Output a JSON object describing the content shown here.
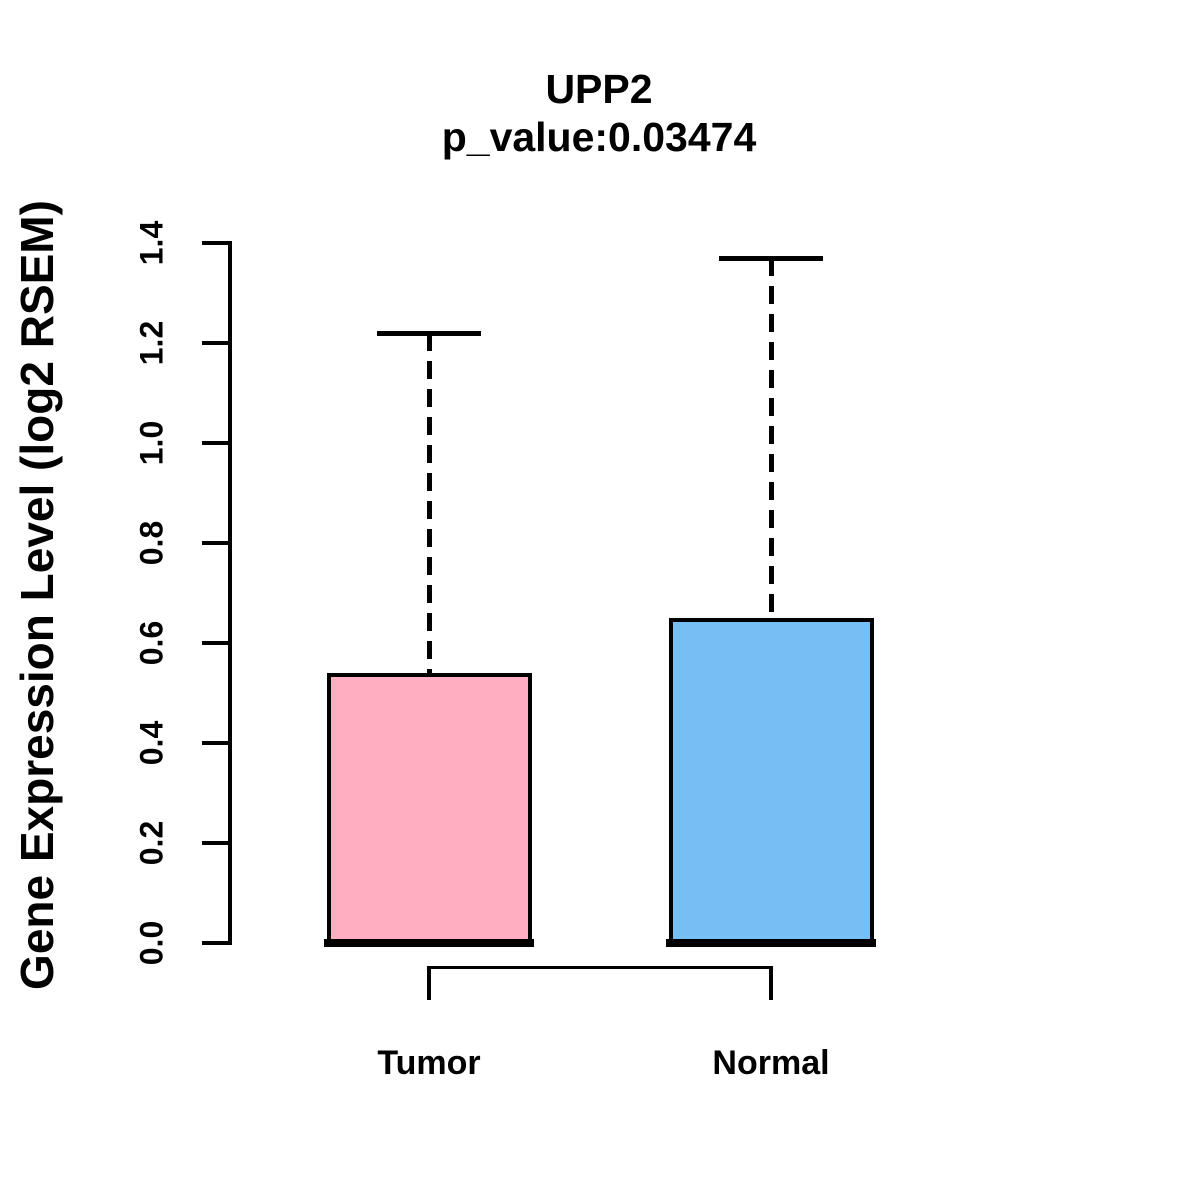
{
  "chart": {
    "title": "UPP2",
    "subtitle": "p_value:0.03474",
    "y_axis_label": "Gene Expression Level (log2 RSEM)"
  },
  "chart_data": {
    "type": "boxplot",
    "title": "UPP2",
    "subtitle": "p_value:0.03474",
    "p_value": 0.03474,
    "xlabel": "",
    "ylabel": "Gene Expression Level (log2 RSEM)",
    "ylim": [
      0.0,
      1.4
    ],
    "y_ticks": [
      "0.0",
      "0.2",
      "0.4",
      "0.6",
      "0.8",
      "1.0",
      "1.2",
      "1.4"
    ],
    "grid": false,
    "legend": "none",
    "categories": [
      "Tumor",
      "Normal"
    ],
    "series": [
      {
        "name": "Tumor",
        "color": "#FFAEC1",
        "lower_whisker": 0.0,
        "q1": 0.0,
        "median": 0.0,
        "q3": 0.54,
        "upper_whisker": 1.22
      },
      {
        "name": "Normal",
        "color": "#75BFF5",
        "lower_whisker": 0.0,
        "q1": 0.0,
        "median": 0.0,
        "q3": 0.65,
        "upper_whisker": 1.37
      }
    ]
  },
  "colors": {
    "background": "#FFFFFF",
    "axis": "#000000",
    "box_border": "#000000",
    "tumor_fill": "#FFAEC1",
    "normal_fill": "#75BFF5"
  }
}
